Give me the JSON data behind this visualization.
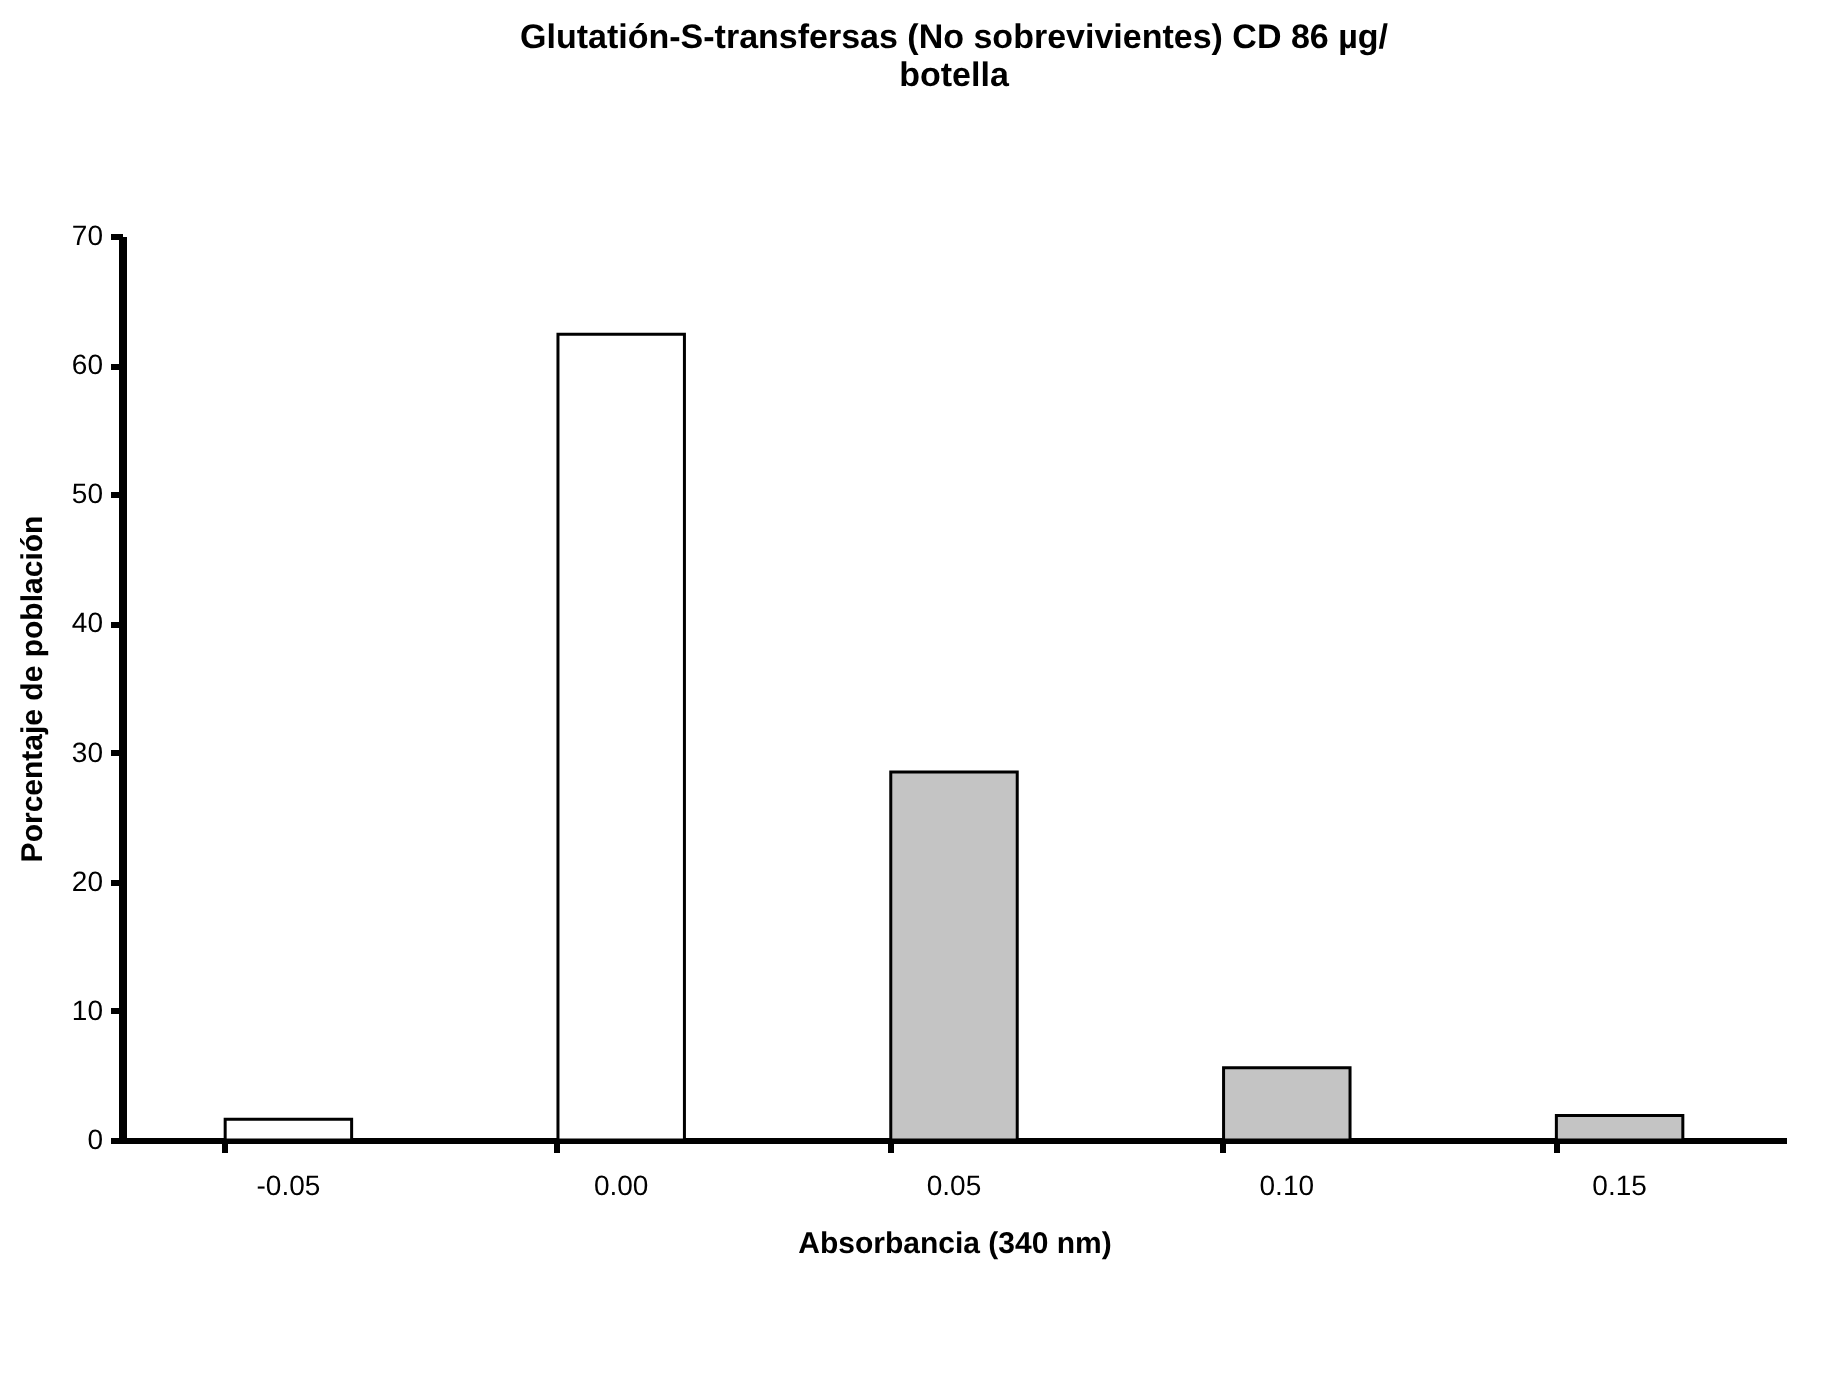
{
  "chart_data": {
    "type": "bar",
    "title": "Glutatión-S-transfersas (No sobrevivientes) CD 86 µg/ botella",
    "xlabel": "Absorbancia (340 nm)",
    "ylabel": "Porcentaje de población",
    "categories": [
      "-0.05",
      "0.00",
      "0.05",
      "0.10",
      "0.15"
    ],
    "values": [
      1.6,
      62.4,
      28.5,
      5.6,
      1.9
    ],
    "colors": [
      "#ffffff",
      "#ffffff",
      "#c4c4c4",
      "#c4c4c4",
      "#c4c4c4"
    ],
    "ylim": [
      0,
      70
    ],
    "yticks": [
      0,
      10,
      20,
      30,
      40,
      50,
      60,
      70
    ],
    "grid": false
  }
}
